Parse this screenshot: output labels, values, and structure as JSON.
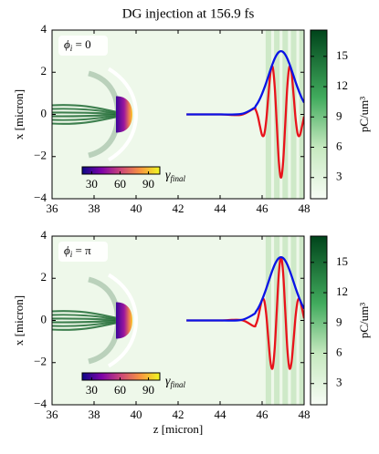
{
  "title": "DG injection at 156.9 fs",
  "chart_data": [
    {
      "type": "line",
      "ylabel": "x [micron]",
      "annotation": {
        "symbol": "ϕ",
        "sub": "i",
        "text": " = 0"
      },
      "x": [
        42.4,
        44.0,
        45.0,
        45.6,
        45.7,
        45.8,
        45.9,
        46.0,
        46.1,
        46.2,
        46.3,
        46.4,
        46.5,
        46.6,
        46.7,
        46.8,
        46.9,
        47.0,
        47.1,
        47.2,
        47.3,
        47.4,
        47.5,
        47.6,
        47.7,
        47.8,
        47.9,
        48.0
      ],
      "series": [
        {
          "color": "#e8141c",
          "values": [
            0,
            0,
            -0.02,
            0.27,
            0.2,
            -0.1,
            -0.57,
            -0.98,
            -0.95,
            -0.26,
            0.91,
            1.99,
            2.26,
            1.32,
            -0.49,
            -2.27,
            -3.0,
            -2.27,
            -0.49,
            1.32,
            2.26,
            1.99,
            0.91,
            -0.26,
            -0.95,
            -0.98,
            -0.57,
            -0.1
          ]
        },
        {
          "color": "#0a14e6",
          "values": [
            0,
            0,
            0.02,
            0.29,
            0.41,
            0.56,
            0.75,
            0.98,
            1.24,
            1.52,
            1.82,
            2.12,
            2.4,
            2.65,
            2.84,
            2.96,
            3.0,
            2.96,
            2.84,
            2.65,
            2.4,
            2.12,
            1.82,
            1.52,
            1.24,
            0.98,
            0.75,
            0.56
          ]
        }
      ],
      "xlim": [
        36,
        48
      ],
      "xticks": [
        36,
        38,
        40,
        42,
        44,
        46,
        48
      ],
      "ylim": [
        -4,
        4
      ],
      "yticks": [
        {
          "value": -4,
          "label": "−4"
        },
        {
          "value": -2,
          "label": "−2"
        },
        0,
        2,
        4
      ],
      "colorbar": {
        "label": "pC/um³",
        "lim": [
          0.9,
          17.6
        ],
        "ticks": [
          3,
          6,
          9,
          12,
          15
        ]
      },
      "inset_colorbar": {
        "label": "γ",
        "label_sub": "final",
        "lim": [
          20,
          102
        ],
        "ticks": [
          30,
          60,
          90
        ]
      }
    },
    {
      "type": "line",
      "ylabel": "x [micron]",
      "xlabel": "z [micron]",
      "annotation": {
        "symbol": "ϕ",
        "sub": "i",
        "text": " = π"
      },
      "x": [
        42.4,
        44.0,
        45.0,
        45.6,
        45.7,
        45.8,
        45.9,
        46.0,
        46.1,
        46.2,
        46.3,
        46.4,
        46.5,
        46.6,
        46.7,
        46.8,
        46.9,
        47.0,
        47.1,
        47.2,
        47.3,
        47.4,
        47.5,
        47.6,
        47.7,
        47.8,
        47.9,
        48.0
      ],
      "series": [
        {
          "color": "#e8141c",
          "values": [
            0,
            0,
            0.02,
            -0.27,
            -0.2,
            0.1,
            0.57,
            0.98,
            0.95,
            0.26,
            -0.91,
            -1.99,
            -2.26,
            -1.32,
            0.49,
            2.27,
            3.0,
            2.27,
            0.49,
            -1.32,
            -2.26,
            -1.99,
            -0.91,
            0.26,
            0.95,
            0.98,
            0.57,
            0.1
          ]
        },
        {
          "color": "#0a14e6",
          "values": [
            0,
            0,
            0.02,
            0.29,
            0.41,
            0.56,
            0.75,
            0.98,
            1.24,
            1.52,
            1.82,
            2.12,
            2.4,
            2.65,
            2.84,
            2.96,
            3.0,
            2.96,
            2.84,
            2.65,
            2.4,
            2.12,
            1.82,
            1.52,
            1.24,
            0.98,
            0.75,
            0.56
          ]
        }
      ],
      "xlim": [
        36,
        48
      ],
      "xticks": [
        36,
        38,
        40,
        42,
        44,
        46,
        48
      ],
      "ylim": [
        -4,
        4
      ],
      "yticks": [
        {
          "value": -4,
          "label": "−4"
        },
        {
          "value": -2,
          "label": "−2"
        },
        0,
        2,
        4
      ],
      "colorbar": {
        "label": "pC/um³",
        "lim": [
          0.9,
          17.6
        ],
        "ticks": [
          3,
          6,
          9,
          12,
          15
        ]
      },
      "inset_colorbar": {
        "label": "γ",
        "label_sub": "final",
        "lim": [
          20,
          102
        ],
        "ticks": [
          30,
          60,
          90
        ]
      }
    }
  ]
}
